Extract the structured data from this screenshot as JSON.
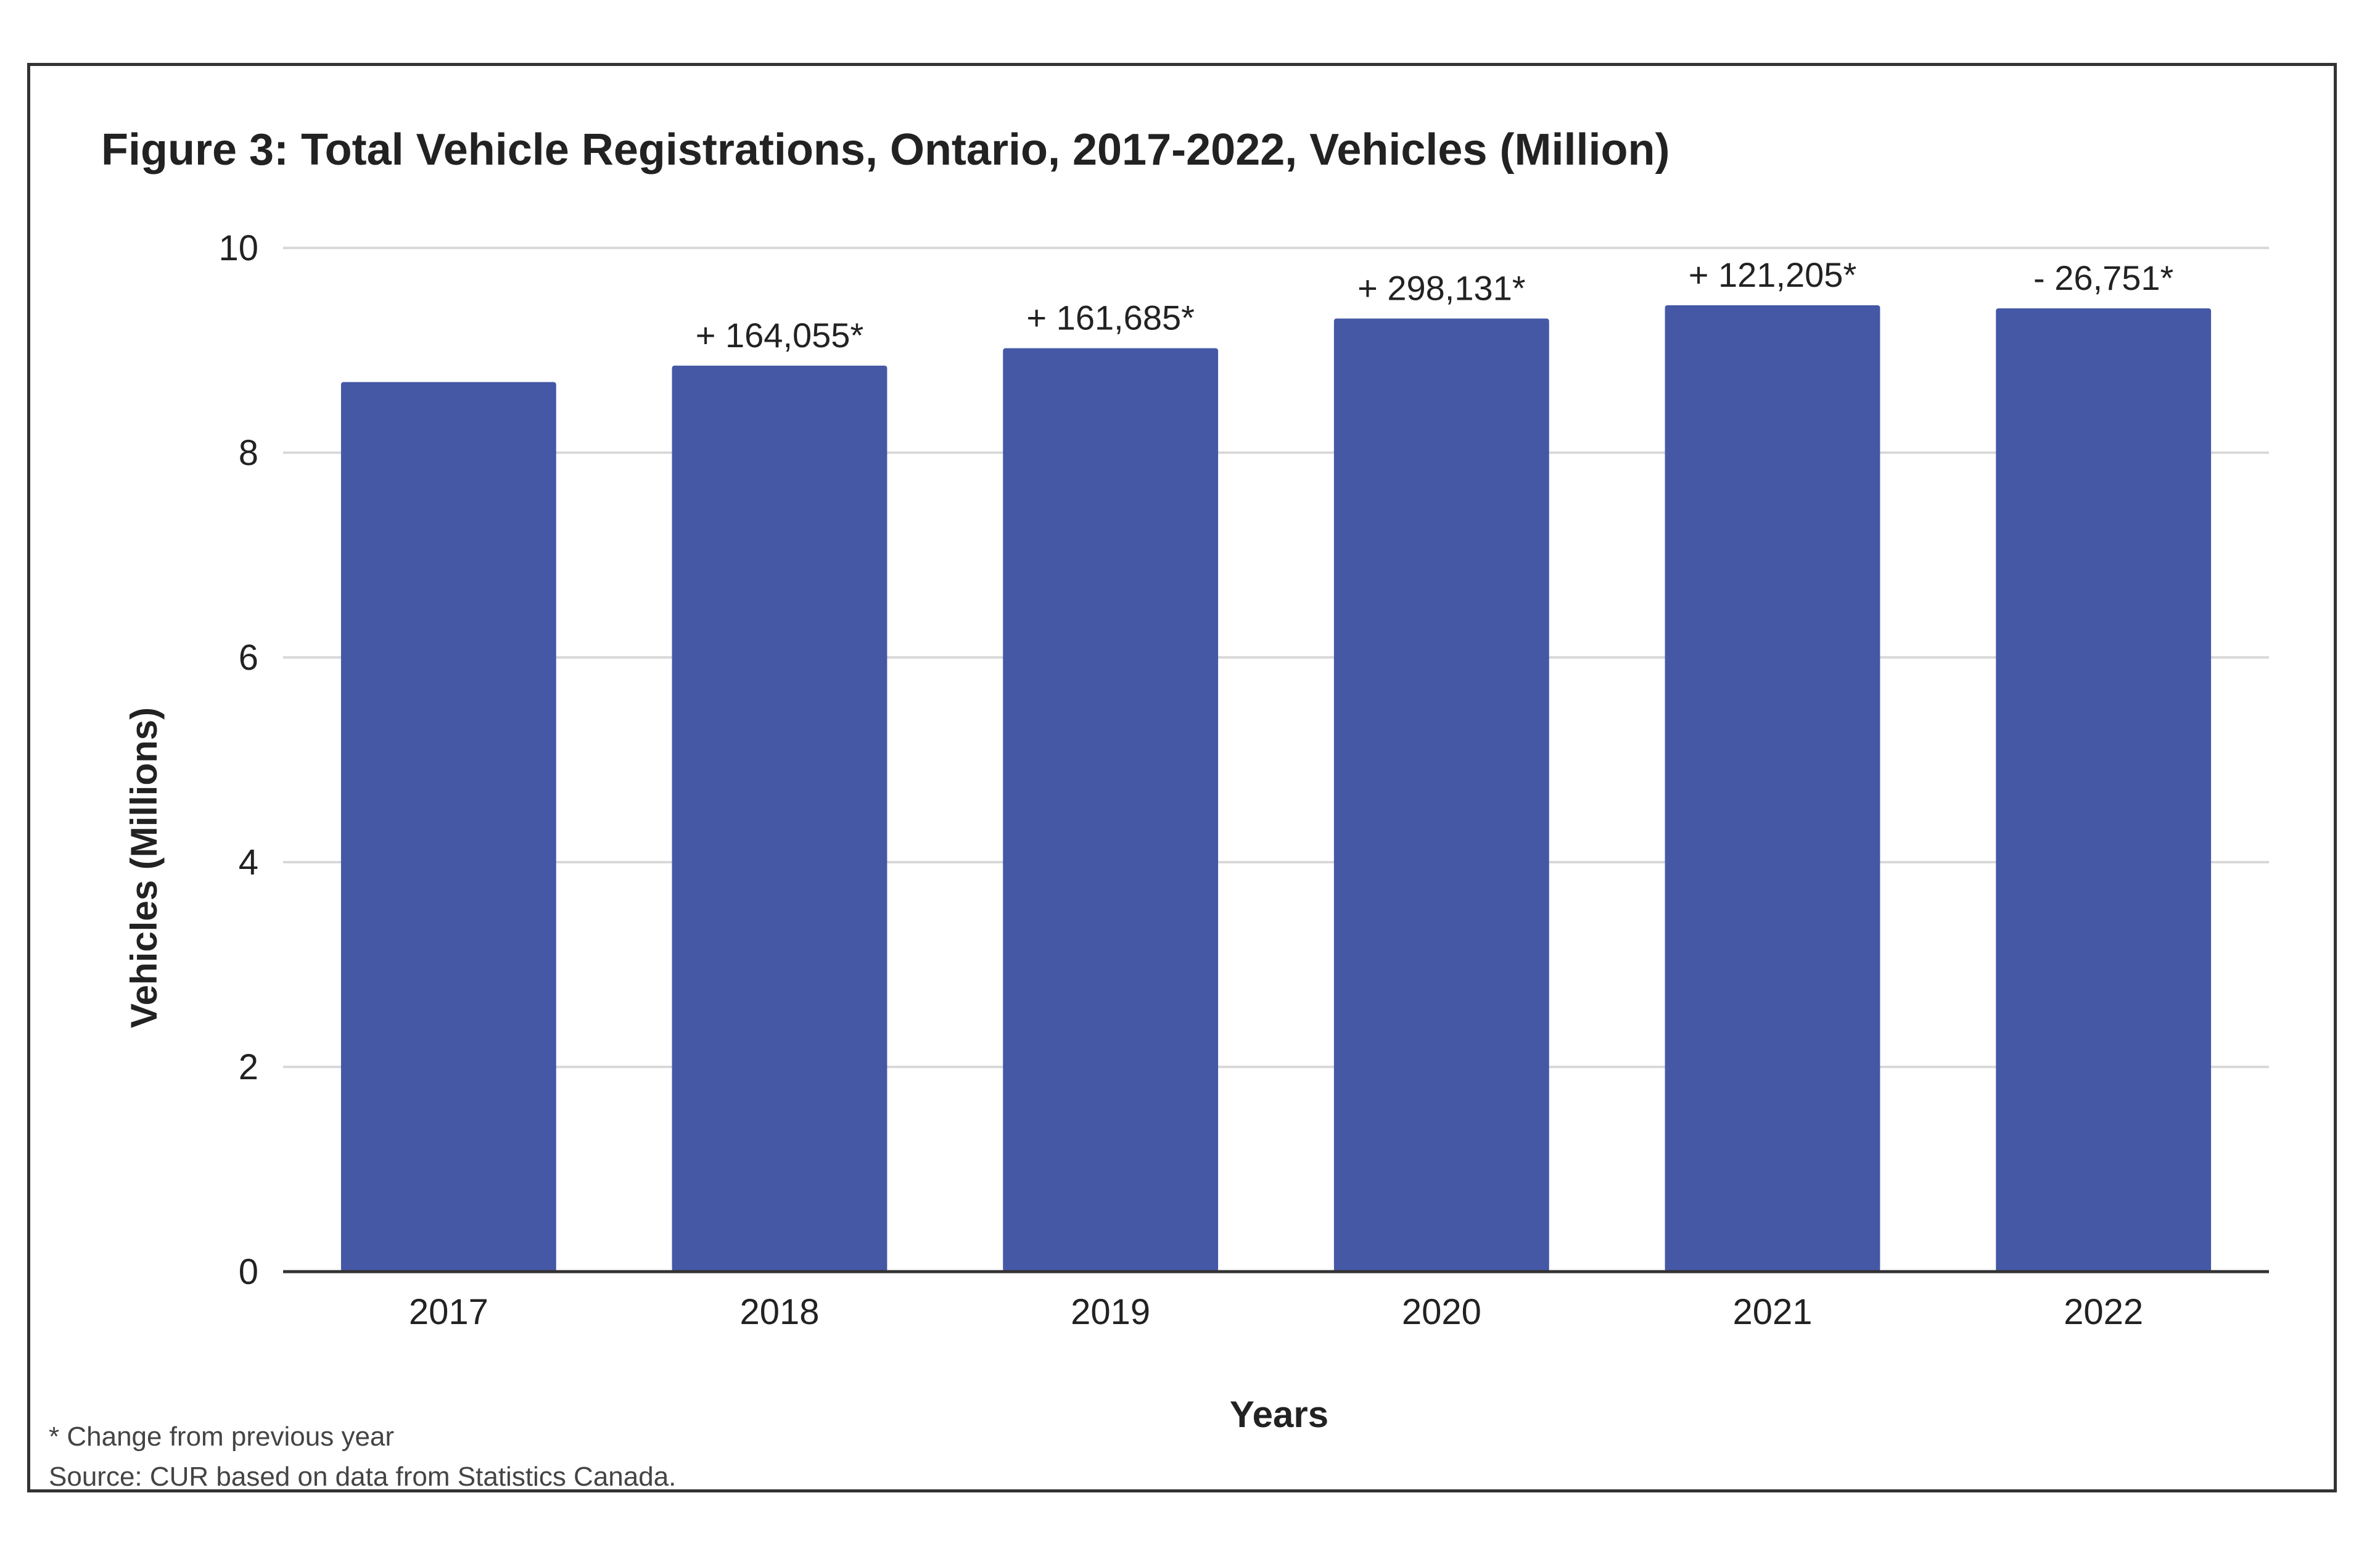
{
  "chart_data": {
    "type": "bar",
    "title": "Figure 3: Total Vehicle Registrations, Ontario, 2017-2022, Vehicles (Million)",
    "xlabel": "Years",
    "ylabel": "Vehicles (Millions)",
    "ylim": [
      0,
      10
    ],
    "yticks": [
      "0",
      "2",
      "4",
      "6",
      "8",
      "10"
    ],
    "grid": true,
    "categories": [
      "2017",
      "2018",
      "2019",
      "2020",
      "2021",
      "2022"
    ],
    "values": [
      8.69,
      8.85,
      9.02,
      9.31,
      9.44,
      9.41
    ],
    "labels": [
      "",
      "+ 164,055*",
      "+ 161,685*",
      "+ 298,131*",
      "+ 121,205*",
      "- 26,751*"
    ],
    "bar_color": "#4558a6",
    "footnotes": [
      "* Change from previous year",
      "Source: CUR based on data from Statistics Canada."
    ]
  }
}
